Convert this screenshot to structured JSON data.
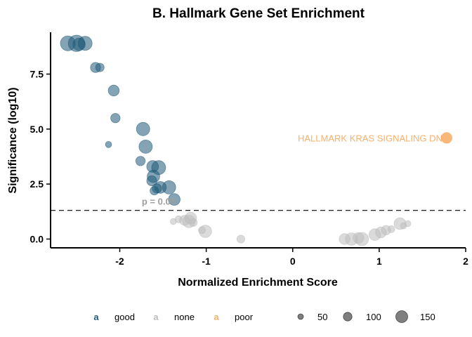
{
  "chart_data": {
    "type": "scatter",
    "title": "B. Hallmark Gene Set Enrichment",
    "xlabel": "Normalized Enrichment Score",
    "ylabel": "Significance (log10)",
    "xlim": [
      -2.8,
      2.0
    ],
    "ylim": [
      -0.4,
      9.4
    ],
    "xticks": [
      -2,
      -1,
      0,
      1,
      2
    ],
    "yticks": [
      0.0,
      2.5,
      5.0,
      7.5
    ],
    "xtick_labels": [
      "-2",
      "-1",
      "0",
      "1",
      "2"
    ],
    "ytick_labels": [
      "0.0",
      "2.5",
      "5.0",
      "7.5"
    ],
    "threshold": {
      "y": 1.3,
      "label": "p = 0.05"
    },
    "colors": {
      "good": "#1f5a78",
      "none": "#bdbdbd",
      "poor": "#f8b06b"
    },
    "legend": {
      "placement": "bottom",
      "groups": [
        {
          "key": "a",
          "label": "good"
        },
        {
          "key": "a",
          "label": "none"
        },
        {
          "key": "a",
          "label": "poor"
        }
      ],
      "sizes": [
        {
          "value": 50,
          "label": "50"
        },
        {
          "value": 100,
          "label": "100"
        },
        {
          "value": 150,
          "label": "150"
        }
      ]
    },
    "annotations": [
      {
        "text": "HALLMARK KRAS SIGNALING DN",
        "x": 1.78,
        "y": 4.6,
        "group": "poor"
      }
    ],
    "points": [
      {
        "x": -2.6,
        "y": 8.9,
        "size": 150,
        "group": "good"
      },
      {
        "x": -2.5,
        "y": 8.9,
        "size": 170,
        "group": "good"
      },
      {
        "x": -2.47,
        "y": 8.85,
        "size": 120,
        "group": "good"
      },
      {
        "x": -2.4,
        "y": 8.9,
        "size": 140,
        "group": "good"
      },
      {
        "x": -2.28,
        "y": 7.8,
        "size": 90,
        "group": "good"
      },
      {
        "x": -2.23,
        "y": 7.8,
        "size": 70,
        "group": "good"
      },
      {
        "x": -2.07,
        "y": 6.75,
        "size": 100,
        "group": "good"
      },
      {
        "x": -2.05,
        "y": 5.5,
        "size": 80,
        "group": "good"
      },
      {
        "x": -2.13,
        "y": 4.3,
        "size": 40,
        "group": "good"
      },
      {
        "x": -1.73,
        "y": 5.0,
        "size": 130,
        "group": "good"
      },
      {
        "x": -1.7,
        "y": 4.2,
        "size": 130,
        "group": "good"
      },
      {
        "x": -1.76,
        "y": 3.55,
        "size": 80,
        "group": "good"
      },
      {
        "x": -1.62,
        "y": 3.3,
        "size": 110,
        "group": "good"
      },
      {
        "x": -1.55,
        "y": 3.25,
        "size": 140,
        "group": "good"
      },
      {
        "x": -1.61,
        "y": 2.85,
        "size": 120,
        "group": "good"
      },
      {
        "x": -1.63,
        "y": 2.65,
        "size": 90,
        "group": "good"
      },
      {
        "x": -1.53,
        "y": 2.35,
        "size": 110,
        "group": "good"
      },
      {
        "x": -1.57,
        "y": 2.3,
        "size": 80,
        "group": "good"
      },
      {
        "x": -1.6,
        "y": 2.2,
        "size": 70,
        "group": "good"
      },
      {
        "x": -1.43,
        "y": 2.35,
        "size": 130,
        "group": "good"
      },
      {
        "x": -1.37,
        "y": 1.8,
        "size": 110,
        "group": "good"
      },
      {
        "x": -1.38,
        "y": 0.8,
        "size": 40,
        "group": "none"
      },
      {
        "x": -1.32,
        "y": 0.9,
        "size": 50,
        "group": "none"
      },
      {
        "x": -1.25,
        "y": 0.85,
        "size": 90,
        "group": "none"
      },
      {
        "x": -1.2,
        "y": 0.8,
        "size": 120,
        "group": "none"
      },
      {
        "x": -1.18,
        "y": 0.95,
        "size": 110,
        "group": "none"
      },
      {
        "x": -1.15,
        "y": 0.75,
        "size": 60,
        "group": "none"
      },
      {
        "x": -1.05,
        "y": 0.4,
        "size": 50,
        "group": "none"
      },
      {
        "x": -1.01,
        "y": 0.35,
        "size": 120,
        "group": "none"
      },
      {
        "x": -0.6,
        "y": 0.0,
        "size": 60,
        "group": "none"
      },
      {
        "x": 0.6,
        "y": 0.0,
        "size": 100,
        "group": "none"
      },
      {
        "x": 0.68,
        "y": 0.0,
        "size": 120,
        "group": "none"
      },
      {
        "x": 0.76,
        "y": 0.05,
        "size": 100,
        "group": "none"
      },
      {
        "x": 0.8,
        "y": 0.0,
        "size": 130,
        "group": "none"
      },
      {
        "x": 0.95,
        "y": 0.2,
        "size": 110,
        "group": "none"
      },
      {
        "x": 1.02,
        "y": 0.3,
        "size": 100,
        "group": "none"
      },
      {
        "x": 1.08,
        "y": 0.4,
        "size": 80,
        "group": "none"
      },
      {
        "x": 1.14,
        "y": 0.45,
        "size": 50,
        "group": "none"
      },
      {
        "x": 1.24,
        "y": 0.7,
        "size": 110,
        "group": "none"
      },
      {
        "x": 1.28,
        "y": 0.6,
        "size": 40,
        "group": "none"
      },
      {
        "x": 1.33,
        "y": 0.7,
        "size": 40,
        "group": "none"
      },
      {
        "x": 1.78,
        "y": 4.6,
        "size": 100,
        "group": "poor"
      }
    ]
  }
}
